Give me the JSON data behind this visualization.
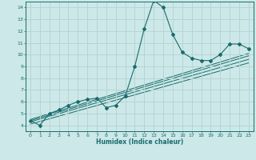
{
  "title": "",
  "xlabel": "Humidex (Indice chaleur)",
  "bg_color": "#cce8e8",
  "grid_color": "#b8d4d4",
  "line_color": "#1a6b6b",
  "xlim": [
    -0.5,
    23.5
  ],
  "ylim": [
    3.5,
    14.5
  ],
  "xticks": [
    0,
    1,
    2,
    3,
    4,
    5,
    6,
    7,
    8,
    9,
    10,
    11,
    12,
    13,
    14,
    15,
    16,
    17,
    18,
    19,
    20,
    21,
    22,
    23
  ],
  "yticks": [
    4,
    5,
    6,
    7,
    8,
    9,
    10,
    11,
    12,
    13,
    14
  ],
  "curve_x": [
    0,
    1,
    2,
    3,
    4,
    5,
    6,
    7,
    8,
    9,
    10,
    11,
    12,
    13,
    14,
    15,
    16,
    17,
    18,
    19,
    20,
    21,
    22,
    23
  ],
  "curve_y": [
    4.4,
    4.0,
    5.0,
    5.3,
    5.7,
    6.0,
    6.2,
    6.3,
    5.5,
    5.7,
    6.5,
    9.0,
    12.2,
    14.6,
    14.0,
    11.7,
    10.2,
    9.7,
    9.5,
    9.5,
    10.0,
    10.9,
    10.9,
    10.5
  ],
  "line1_x": [
    0,
    23
  ],
  "line1_y": [
    4.3,
    9.6
  ],
  "line2_x": [
    0,
    23
  ],
  "line2_y": [
    4.1,
    9.3
  ],
  "line3_x": [
    0,
    23
  ],
  "line3_y": [
    4.5,
    10.1
  ],
  "line4_x": [
    0,
    23
  ],
  "line4_y": [
    4.4,
    9.9
  ]
}
